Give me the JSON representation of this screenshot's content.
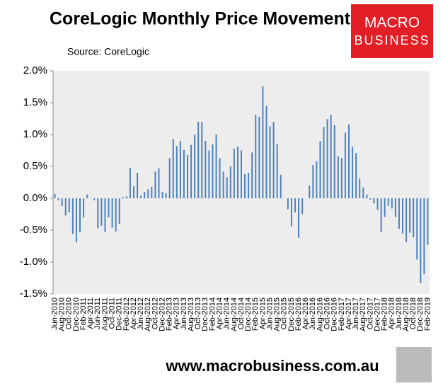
{
  "chart_data": {
    "type": "bar",
    "title": "CoreLogic Monthly Price Movements",
    "subtitle": "Source: CoreLogic",
    "logo": [
      "MACRO",
      "BUSINESS"
    ],
    "footer": "www.macrobusiness.com.au",
    "color": "#4f81bd",
    "categories": [
      "Jun-2010",
      null,
      "Aug-2010",
      null,
      "Oct-2010",
      null,
      "Dec-2010",
      null,
      "Feb-2011",
      null,
      "Apr-2011",
      null,
      "Jun-2011",
      null,
      "Aug-2011",
      null,
      "Oct-2011",
      null,
      "Dec-2011",
      null,
      "Feb-2012",
      null,
      "Apr-2012",
      null,
      "Jun-2012",
      null,
      "Aug-2012",
      null,
      "Oct-2012",
      null,
      "Dec-2012",
      null,
      "Feb-2013",
      null,
      "Apr-2013",
      null,
      "Jun-2013",
      null,
      "Aug-2013",
      null,
      "Oct-2013",
      null,
      "Dec-2013",
      null,
      "Feb-2014",
      null,
      "Apr-2014",
      null,
      "Jun-2014",
      null,
      "Aug-2014",
      null,
      "Oct-2014",
      null,
      "Dec-2014",
      null,
      "Feb-2015",
      null,
      "Apr-2015",
      null,
      "Jun-2015",
      null,
      "Aug-2015",
      null,
      "Oct-2015",
      null,
      "Dec-2015",
      null,
      "Feb-2016",
      null,
      "Apr-2016",
      null,
      "Jun-2016",
      null,
      "Aug-2016",
      null,
      "Oct-2016",
      null,
      "Dec-2016",
      null,
      "Feb-2017",
      null,
      "Apr-2017",
      null,
      "Jun-2017",
      null,
      "Aug-2017",
      null,
      "Oct-2017",
      null,
      "Dec-2017",
      null,
      "Feb-2018",
      null,
      "Apr-2018",
      null,
      "Jun-2018",
      null,
      "Aug-2018",
      null,
      "Oct-2018",
      null,
      "Dec-2018",
      null,
      "Feb-2019"
    ],
    "values": [
      0.07,
      -0.03,
      -0.12,
      -0.27,
      -0.22,
      -0.56,
      -0.69,
      -0.53,
      -0.3,
      0.06,
      0.01,
      -0.03,
      -0.47,
      -0.43,
      -0.53,
      -0.3,
      -0.46,
      -0.52,
      -0.4,
      0.02,
      0.03,
      0.48,
      0.19,
      0.4,
      0.04,
      0.1,
      0.14,
      0.18,
      0.42,
      0.47,
      0.1,
      0.08,
      0.63,
      0.93,
      0.82,
      0.9,
      0.76,
      0.68,
      0.84,
      1.0,
      1.2,
      1.2,
      0.9,
      0.75,
      0.85,
      1.0,
      0.63,
      0.42,
      0.33,
      0.5,
      0.78,
      0.81,
      0.75,
      0.38,
      0.4,
      0.72,
      1.31,
      1.28,
      1.76,
      1.45,
      1.13,
      1.2,
      0.85,
      0.37,
      0.0,
      -0.17,
      -0.44,
      -0.22,
      -0.62,
      -0.25,
      0.0,
      0.2,
      0.52,
      0.58,
      0.9,
      1.12,
      1.24,
      1.31,
      1.15,
      0.66,
      0.63,
      1.03,
      1.16,
      0.81,
      0.71,
      0.31,
      0.17,
      0.06,
      -0.02,
      -0.08,
      -0.18,
      -0.53,
      -0.29,
      -0.12,
      -0.16,
      -0.29,
      -0.48,
      -0.55,
      -0.69,
      -0.54,
      -0.61,
      -0.96,
      -1.33,
      -1.19,
      -0.73
    ],
    "ylim": [
      -1.5,
      2.0
    ],
    "yticks": [
      {
        "value": -1.5,
        "label": "-1.5%"
      },
      {
        "value": -1.0,
        "label": "-1.0%"
      },
      {
        "value": -0.5,
        "label": "-0.5%"
      },
      {
        "value": 0,
        "label": "0.0%"
      },
      {
        "value": 0.5,
        "label": "0.5%"
      },
      {
        "value": 1.0,
        "label": "1.0%"
      },
      {
        "value": 1.5,
        "label": "1.5%"
      },
      {
        "value": 2.0,
        "label": "2.0%"
      }
    ]
  }
}
